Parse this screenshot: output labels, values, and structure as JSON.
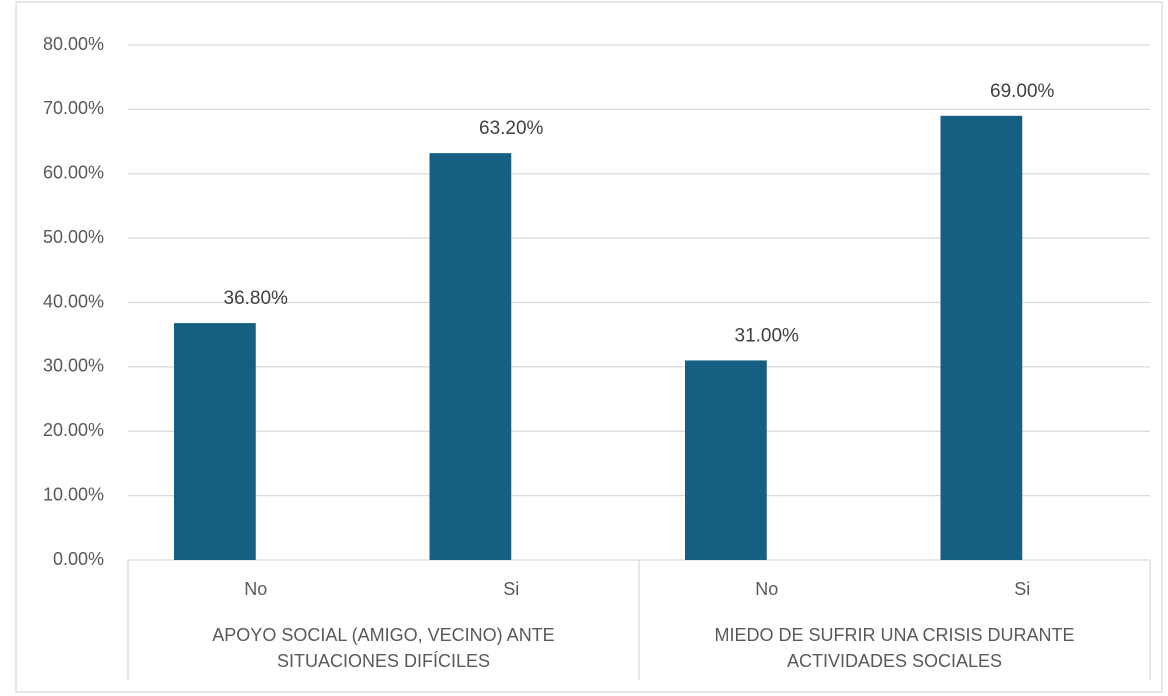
{
  "chart_data": {
    "type": "bar",
    "categories": [
      "No",
      "Si",
      "No",
      "Si"
    ],
    "groups": [
      [
        "APOYO SOCIAL (AMIGO, VECINO) ANTE",
        "SITUACIONES DIFÍCILES"
      ],
      [
        "MIEDO DE SUFRIR UNA CRISIS DURANTE",
        "ACTIVIDADES SOCIALES"
      ]
    ],
    "values": [
      36.8,
      63.2,
      31,
      69
    ],
    "value_labels": [
      "36.80%",
      "63.20%",
      "31.00%",
      "69.00%"
    ],
    "color": "#155f82",
    "ylim": [
      0,
      80
    ],
    "yticks": [
      {
        "value": 0,
        "label": "0.00%"
      },
      {
        "value": 10,
        "label": "10.00%"
      },
      {
        "value": 20,
        "label": "20.00%"
      },
      {
        "value": 30,
        "label": "30.00%"
      },
      {
        "value": 40,
        "label": "40.00%"
      },
      {
        "value": 50,
        "label": "50.00%"
      },
      {
        "value": 60,
        "label": "60.00%"
      },
      {
        "value": 70,
        "label": "70.00%"
      },
      {
        "value": 80,
        "label": "80.00%"
      }
    ],
    "grid": true
  }
}
